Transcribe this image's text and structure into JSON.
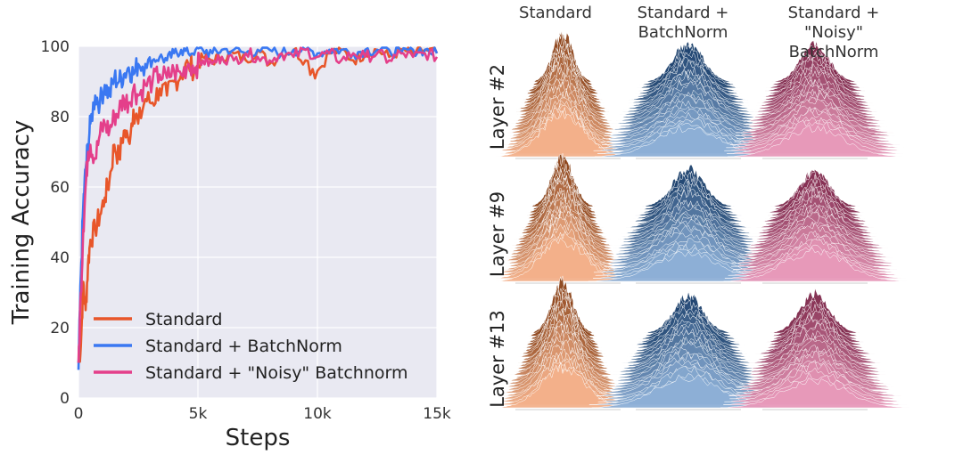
{
  "chart_data": [
    {
      "type": "line",
      "title": "",
      "xlabel": "Steps",
      "ylabel": "Training Accuracy",
      "xlim": [
        0,
        15000
      ],
      "ylim": [
        0,
        100
      ],
      "xticks": [
        {
          "value": 0,
          "label": "0"
        },
        {
          "value": 5000,
          "label": "5k"
        },
        {
          "value": 10000,
          "label": "10k"
        },
        {
          "value": 15000,
          "label": "15k"
        }
      ],
      "yticks": [
        0,
        20,
        40,
        60,
        80,
        100
      ],
      "grid": true,
      "legend_position": "lower-left",
      "series": [
        {
          "name": "Standard",
          "color": "#e8562a",
          "x": [
            0,
            100,
            200,
            300,
            400,
            500,
            700,
            900,
            1100,
            1300,
            1500,
            1700,
            1900,
            2100,
            2300,
            2500,
            2800,
            3100,
            3400,
            3700,
            4000,
            4300,
            4600,
            4900,
            5200,
            5600,
            6000,
            6500,
            7000,
            7500,
            8000,
            8500,
            9000,
            9500,
            10000,
            10500,
            11000,
            11500,
            12000,
            12500,
            13000,
            13500,
            14000,
            14500,
            15000
          ],
          "y": [
            10,
            15,
            33,
            25,
            38,
            45,
            48,
            52,
            57,
            62,
            72,
            68,
            76,
            73,
            82,
            78,
            85,
            84,
            88,
            86,
            90,
            92,
            95,
            93,
            97,
            96,
            97,
            98,
            96,
            99,
            95,
            98,
            99,
            96,
            93,
            98,
            99,
            96,
            98,
            99,
            97,
            99,
            98,
            99,
            98
          ]
        },
        {
          "name": "Standard + BatchNorm",
          "color": "#3a78f2",
          "x": [
            0,
            100,
            200,
            300,
            400,
            500,
            700,
            900,
            1100,
            1300,
            1500,
            1700,
            1900,
            2100,
            2300,
            2500,
            2800,
            3100,
            3400,
            3700,
            4000,
            4300,
            4600,
            4900,
            5200,
            5600,
            6000,
            6500,
            7000,
            7500,
            8000,
            8500,
            9000,
            9500,
            10000,
            10500,
            11000,
            11500,
            12000,
            12500,
            13000,
            13500,
            14000,
            14500,
            15000
          ],
          "y": [
            8,
            35,
            55,
            65,
            72,
            78,
            86,
            84,
            89,
            86,
            91,
            90,
            92,
            94,
            92,
            95,
            95,
            96,
            97,
            96,
            98,
            99,
            98,
            99,
            99,
            98,
            99,
            99,
            98,
            99,
            99,
            98,
            99,
            99,
            98,
            99,
            99,
            98,
            99,
            99,
            99,
            98,
            99,
            99,
            98
          ]
        },
        {
          "name": "Standard + \"Noisy\" Batchnorm",
          "color": "#e43f8a",
          "x": [
            0,
            100,
            200,
            300,
            400,
            500,
            700,
            900,
            1100,
            1300,
            1500,
            1700,
            1900,
            2100,
            2300,
            2500,
            2800,
            3100,
            3400,
            3700,
            4000,
            4300,
            4600,
            4900,
            5200,
            5600,
            6000,
            6500,
            7000,
            7500,
            8000,
            8500,
            9000,
            9500,
            10000,
            10500,
            11000,
            11500,
            12000,
            12500,
            13000,
            13500,
            14000,
            14500,
            15000
          ],
          "y": [
            10,
            30,
            48,
            60,
            70,
            72,
            68,
            75,
            78,
            76,
            80,
            82,
            85,
            84,
            88,
            86,
            89,
            90,
            92,
            91,
            93,
            92,
            95,
            94,
            96,
            95,
            97,
            96,
            98,
            97,
            96,
            98,
            97,
            99,
            97,
            98,
            96,
            98,
            97,
            98,
            96,
            98,
            97,
            98,
            97
          ]
        }
      ]
    },
    {
      "type": "ridgeline-grid",
      "columns": [
        {
          "title": "Standard",
          "color": "#e8702a"
        },
        {
          "title": "Standard +\nBatchNorm",
          "color": "#2f6db5"
        },
        {
          "title": "Standard +\n\"Noisy\" BatchNorm",
          "color": "#d4457f"
        }
      ],
      "rows": [
        "Layer #2",
        "Layer #9",
        "Layer #13"
      ]
    }
  ]
}
